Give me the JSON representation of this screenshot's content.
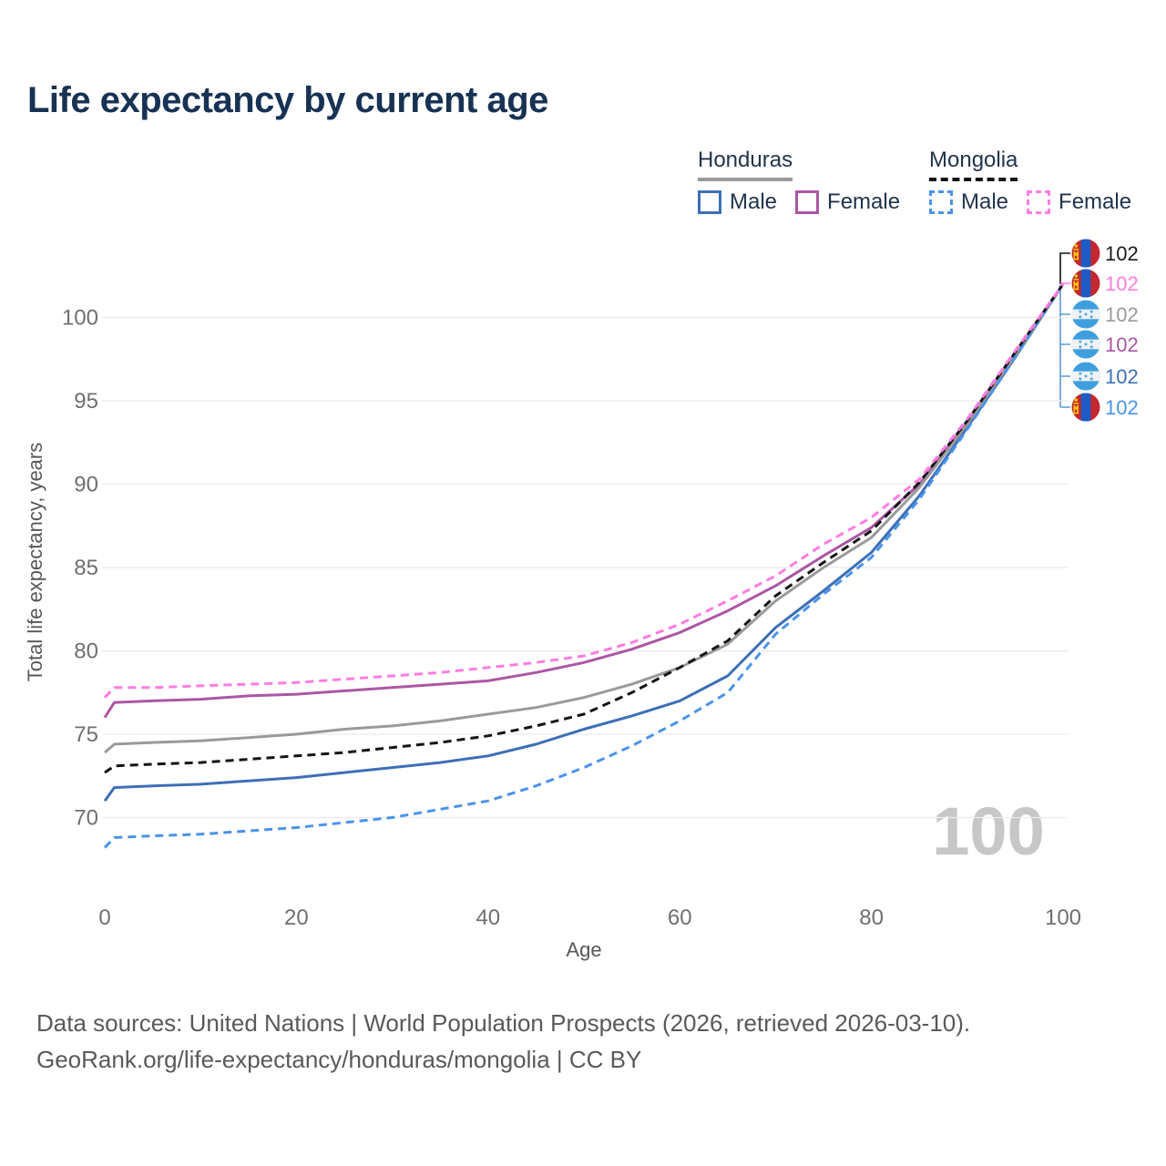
{
  "title": "Life expectancy by current age",
  "legend": {
    "groups": [
      {
        "label": "Honduras",
        "style": "solid",
        "items": [
          {
            "label": "Male",
            "color": "#3d6fb7"
          },
          {
            "label": "Female",
            "color": "#ab57a3"
          }
        ]
      },
      {
        "label": "Mongolia",
        "style": "dashed",
        "items": [
          {
            "label": "Male",
            "color": "#4b93ea"
          },
          {
            "label": "Female",
            "color": "#ff7ce1"
          }
        ]
      }
    ]
  },
  "chart_data": {
    "type": "line",
    "title": "Life expectancy by current age",
    "xlabel": "Age",
    "ylabel": "Total life expectancy, years",
    "xlim": [
      0,
      100
    ],
    "ylim": [
      67,
      103
    ],
    "x_ticks": [
      0,
      20,
      40,
      60,
      80,
      100
    ],
    "y_ticks": [
      70,
      75,
      80,
      85,
      90,
      95,
      100
    ],
    "grid": "horizontal",
    "legend_position": "top-right",
    "x": [
      0,
      1,
      5,
      10,
      15,
      20,
      25,
      30,
      35,
      40,
      45,
      50,
      55,
      60,
      65,
      70,
      75,
      80,
      85,
      90,
      95,
      100
    ],
    "series": [
      {
        "name": "Honduras Male",
        "country": "Honduras",
        "sex": "Male",
        "color": "#3d6fb7",
        "dash": "solid",
        "values": [
          71.0,
          71.8,
          71.9,
          72.0,
          72.2,
          72.4,
          72.7,
          73.0,
          73.3,
          73.7,
          74.4,
          75.3,
          76.1,
          77.0,
          78.5,
          81.4,
          83.6,
          85.9,
          89.3,
          93.4,
          97.6,
          102
        ]
      },
      {
        "name": "Honduras Female",
        "country": "Honduras",
        "sex": "Female",
        "color": "#ab57a3",
        "dash": "solid",
        "values": [
          76.0,
          76.9,
          77.0,
          77.1,
          77.3,
          77.4,
          77.6,
          77.8,
          78.0,
          78.2,
          78.7,
          79.3,
          80.1,
          81.1,
          82.4,
          83.9,
          85.7,
          87.4,
          90.0,
          93.7,
          97.8,
          102
        ]
      },
      {
        "name": "Honduras",
        "country": "Honduras",
        "sex": "Both",
        "color": "#9a9a9a",
        "dash": "solid",
        "values": [
          73.9,
          74.4,
          74.5,
          74.6,
          74.8,
          75.0,
          75.3,
          75.5,
          75.8,
          76.2,
          76.6,
          77.2,
          78.0,
          79.0,
          80.4,
          83.0,
          85.0,
          86.8,
          89.8,
          93.6,
          97.7,
          102
        ]
      },
      {
        "name": "Mongolia Male",
        "country": "Mongolia",
        "sex": "Male",
        "color": "#4b93ea",
        "dash": "dashed",
        "values": [
          68.2,
          68.8,
          68.9,
          69.0,
          69.2,
          69.4,
          69.7,
          70.0,
          70.5,
          71.0,
          71.9,
          73.0,
          74.3,
          75.8,
          77.5,
          81.0,
          83.4,
          85.6,
          89.1,
          93.3,
          97.6,
          102
        ]
      },
      {
        "name": "Mongolia",
        "country": "Mongolia",
        "sex": "Both",
        "color": "#141414",
        "dash": "dashed",
        "values": [
          72.7,
          73.1,
          73.2,
          73.3,
          73.5,
          73.7,
          73.9,
          74.2,
          74.5,
          74.9,
          75.5,
          76.2,
          77.5,
          79.0,
          80.6,
          83.3,
          85.3,
          87.2,
          90.1,
          93.8,
          97.9,
          102
        ]
      },
      {
        "name": "Mongolia Female",
        "country": "Mongolia",
        "sex": "Female",
        "color": "#ff7ce1",
        "dash": "dashed",
        "values": [
          77.2,
          77.8,
          77.8,
          77.9,
          78.0,
          78.1,
          78.3,
          78.5,
          78.7,
          79.0,
          79.3,
          79.7,
          80.5,
          81.6,
          83.0,
          84.5,
          86.4,
          88.0,
          90.3,
          93.9,
          98.0,
          102
        ]
      }
    ]
  },
  "annotations": {
    "watermark": "100",
    "end_labels": [
      {
        "value": "102",
        "flag": "mongolia",
        "series": "Mongolia",
        "color": "#1a1a1a"
      },
      {
        "value": "102",
        "flag": "mongolia",
        "series": "Mongolia Female",
        "color": "#ff7ce1"
      },
      {
        "value": "102",
        "flag": "honduras",
        "series": "Honduras",
        "color": "#9a9a9a"
      },
      {
        "value": "102",
        "flag": "honduras",
        "series": "Honduras Female",
        "color": "#ab57a3"
      },
      {
        "value": "102",
        "flag": "honduras",
        "series": "Honduras Male",
        "color": "#3d6fb7"
      },
      {
        "value": "102",
        "flag": "mongolia",
        "series": "Mongolia Male",
        "color": "#4b93ea"
      }
    ]
  },
  "footer": {
    "line1": "Data sources: United Nations | World Population Prospects (2026, retrieved 2026-03-10).",
    "line2": "GeoRank.org/life-expectancy/honduras/mongolia | CC BY"
  }
}
